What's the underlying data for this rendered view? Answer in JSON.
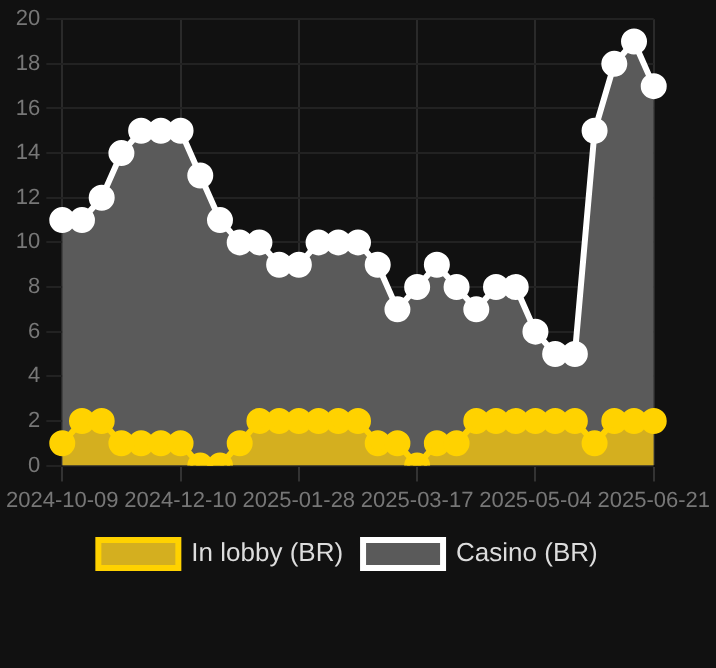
{
  "chart_data": {
    "type": "area",
    "categories": [
      "2024-10-09",
      null,
      null,
      null,
      null,
      null,
      "2024-12-10",
      null,
      null,
      null,
      null,
      null,
      "2025-01-28",
      null,
      null,
      null,
      null,
      null,
      "2025-03-17",
      null,
      null,
      null,
      null,
      null,
      "2025-05-04",
      null,
      null,
      null,
      null,
      null,
      "2025-06-21"
    ],
    "series": [
      {
        "name": "In lobby (BR)",
        "color": "#ffd200",
        "values": [
          1,
          2,
          2,
          1,
          1,
          1,
          1,
          0,
          0,
          1,
          2,
          2,
          2,
          2,
          2,
          2,
          1,
          1,
          0,
          1,
          1,
          2,
          2,
          2,
          2,
          2,
          2,
          1,
          2,
          2,
          2
        ]
      },
      {
        "name": "Casino (BR)",
        "color": "#ffffff",
        "values": [
          11,
          11,
          12,
          14,
          15,
          15,
          15,
          13,
          11,
          10,
          10,
          9,
          9,
          10,
          10,
          10,
          9,
          7,
          8,
          9,
          8,
          7,
          8,
          8,
          6,
          5,
          5,
          15,
          18,
          19,
          17
        ]
      }
    ],
    "ylim": [
      0,
      20
    ],
    "yticks": [
      0,
      2,
      4,
      6,
      8,
      10,
      12,
      14,
      16,
      18,
      20
    ],
    "grid": true,
    "legend": "bottom",
    "marker": "circle"
  }
}
